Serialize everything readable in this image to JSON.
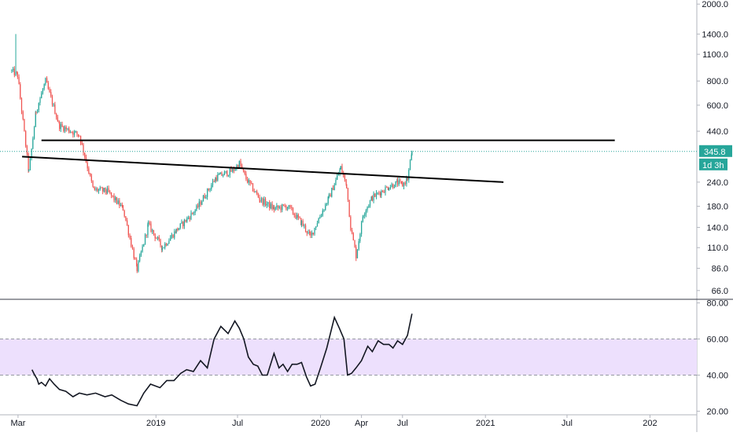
{
  "chart_data": [
    {
      "type": "candlestick",
      "scale": "log",
      "y_ticks": [
        2000.0,
        1400.0,
        1100.0,
        800.0,
        600.0,
        440.0,
        240.0,
        180.0,
        140.0,
        110.0,
        86.0,
        66.0
      ],
      "y_tick_labels": [
        "2000.0",
        "1400.0",
        "1100.0",
        "800.0",
        "600.0",
        "440.0",
        "240.0",
        "180.0",
        "140.0",
        "110.0",
        "86.0",
        "66.0"
      ],
      "ylim": [
        60,
        2100
      ],
      "x_tick_labels": [
        "Mar",
        "2019",
        "Jul",
        "2020",
        "Apr",
        "Jul",
        "2021",
        "Jul",
        "202"
      ],
      "x_tick_dates": [
        "2018-03-01",
        "2019-01-01",
        "2019-07-01",
        "2020-01-01",
        "2020-04-01",
        "2020-07-01",
        "2021-01-01",
        "2021-07-01",
        "2022-01-01"
      ],
      "xlim": [
        "2018-01-20",
        "2022-04-15"
      ],
      "last_price": "345.8",
      "countdown": "1d 3h",
      "colors": {
        "up": "#26a69a",
        "down": "#ef5350",
        "trendline": "#000000",
        "price_line": "#26a69a"
      },
      "anchors": [
        [
          "2018-02-15",
          900
        ],
        [
          "2018-02-28",
          860
        ],
        [
          "2018-03-25",
          270
        ],
        [
          "2018-04-10",
          560
        ],
        [
          "2018-05-01",
          800
        ],
        [
          "2018-06-01",
          470
        ],
        [
          "2018-07-15",
          420
        ],
        [
          "2018-08-15",
          220
        ],
        [
          "2018-09-15",
          215
        ],
        [
          "2018-10-20",
          175
        ],
        [
          "2018-11-20",
          85
        ],
        [
          "2018-12-15",
          145
        ],
        [
          "2019-01-15",
          110
        ],
        [
          "2019-02-15",
          135
        ],
        [
          "2019-04-01",
          175
        ],
        [
          "2019-05-15",
          255
        ],
        [
          "2019-06-20",
          275
        ],
        [
          "2019-07-05",
          300
        ],
        [
          "2019-07-20",
          250
        ],
        [
          "2019-08-20",
          195
        ],
        [
          "2019-09-20",
          175
        ],
        [
          "2019-10-20",
          180
        ],
        [
          "2019-11-20",
          148
        ],
        [
          "2019-12-10",
          125
        ],
        [
          "2019-12-25",
          150
        ],
        [
          "2020-01-20",
          200
        ],
        [
          "2020-02-15",
          285
        ],
        [
          "2020-02-28",
          230
        ],
        [
          "2020-03-08",
          140
        ],
        [
          "2020-03-20",
          100
        ],
        [
          "2020-04-05",
          165
        ],
        [
          "2020-04-25",
          200
        ],
        [
          "2020-05-15",
          215
        ],
        [
          "2020-06-01",
          228
        ],
        [
          "2020-06-20",
          238
        ],
        [
          "2020-07-01",
          232
        ],
        [
          "2020-07-12",
          250
        ],
        [
          "2020-07-22",
          345.8
        ]
      ],
      "lines": [
        {
          "from": [
            "2018-04-22",
            395
          ],
          "to": [
            "2021-10-15",
            395
          ]
        },
        {
          "from": [
            "2018-03-10",
            325
          ],
          "to": [
            "2021-02-10",
            240
          ]
        }
      ]
    },
    {
      "type": "line",
      "indicator": "RSI",
      "y_ticks": [
        80,
        60,
        40,
        20
      ],
      "y_tick_labels": [
        "80.00",
        "60.00",
        "40.00",
        "20.00"
      ],
      "ylim": [
        18,
        82
      ],
      "band": [
        40,
        60
      ],
      "colors": {
        "line": "#131722",
        "band": "#ede0fd"
      },
      "series": [
        [
          "2018-04-01",
          43
        ],
        [
          "2018-04-07",
          40
        ],
        [
          "2018-04-12",
          38
        ],
        [
          "2018-04-16",
          35
        ],
        [
          "2018-04-22",
          36
        ],
        [
          "2018-05-01",
          34
        ],
        [
          "2018-05-10",
          38
        ],
        [
          "2018-05-20",
          35
        ],
        [
          "2018-06-01",
          32
        ],
        [
          "2018-06-15",
          31
        ],
        [
          "2018-07-01",
          28
        ],
        [
          "2018-07-15",
          30
        ],
        [
          "2018-08-01",
          29
        ],
        [
          "2018-08-20",
          30
        ],
        [
          "2018-09-10",
          28
        ],
        [
          "2018-09-25",
          29
        ],
        [
          "2018-10-15",
          26
        ],
        [
          "2018-11-01",
          24
        ],
        [
          "2018-11-20",
          23
        ],
        [
          "2018-12-05",
          30
        ],
        [
          "2018-12-20",
          35
        ],
        [
          "2019-01-10",
          33
        ],
        [
          "2019-01-25",
          37
        ],
        [
          "2019-02-10",
          37
        ],
        [
          "2019-02-25",
          41
        ],
        [
          "2019-03-10",
          43
        ],
        [
          "2019-03-25",
          42
        ],
        [
          "2019-04-10",
          48
        ],
        [
          "2019-04-25",
          44
        ],
        [
          "2019-05-10",
          60
        ],
        [
          "2019-05-25",
          67
        ],
        [
          "2019-06-10",
          63
        ],
        [
          "2019-06-25",
          70
        ],
        [
          "2019-07-05",
          66
        ],
        [
          "2019-07-15",
          60
        ],
        [
          "2019-07-25",
          50
        ],
        [
          "2019-08-05",
          46
        ],
        [
          "2019-08-15",
          45
        ],
        [
          "2019-08-25",
          40
        ],
        [
          "2019-09-05",
          40
        ],
        [
          "2019-09-20",
          52
        ],
        [
          "2019-10-01",
          44
        ],
        [
          "2019-10-10",
          46
        ],
        [
          "2019-10-20",
          42
        ],
        [
          "2019-10-30",
          46
        ],
        [
          "2019-11-10",
          46
        ],
        [
          "2019-11-20",
          47
        ],
        [
          "2019-12-01",
          39
        ],
        [
          "2019-12-10",
          34
        ],
        [
          "2019-12-20",
          35
        ],
        [
          "2020-01-01",
          44
        ],
        [
          "2020-01-15",
          55
        ],
        [
          "2020-02-01",
          72
        ],
        [
          "2020-02-12",
          66
        ],
        [
          "2020-02-22",
          60
        ],
        [
          "2020-03-01",
          40
        ],
        [
          "2020-03-10",
          41
        ],
        [
          "2020-03-20",
          44
        ],
        [
          "2020-04-01",
          48
        ],
        [
          "2020-04-15",
          56
        ],
        [
          "2020-04-25",
          53
        ],
        [
          "2020-05-08",
          59
        ],
        [
          "2020-05-20",
          57
        ],
        [
          "2020-06-01",
          57
        ],
        [
          "2020-06-10",
          55
        ],
        [
          "2020-06-20",
          59
        ],
        [
          "2020-07-01",
          57
        ],
        [
          "2020-07-12",
          62
        ],
        [
          "2020-07-22",
          74
        ]
      ]
    }
  ]
}
